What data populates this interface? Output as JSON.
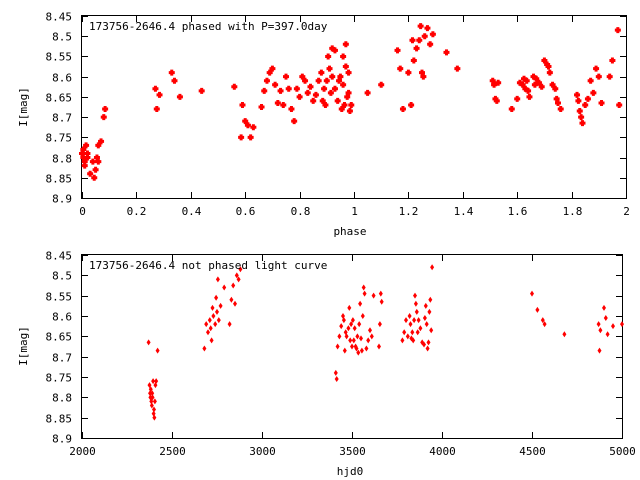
{
  "chart_data": [
    {
      "type": "scatter",
      "title": "173756-2646.4 phased with P=397.0day",
      "xlabel": "phase",
      "ylabel": "I[mag]",
      "xlim": [
        0,
        2
      ],
      "ylim": [
        8.9,
        8.45
      ],
      "y_inverted": true,
      "xticks": [
        0,
        0.2,
        0.4,
        0.6,
        0.8,
        1,
        1.2,
        1.4,
        1.6,
        1.8,
        2
      ],
      "xtick_labels": [
        "0",
        "0.2",
        "0.4",
        "0.6",
        "0.8",
        "1",
        "1.2",
        "1.4",
        "1.6",
        "1.8",
        "2"
      ],
      "yticks": [
        8.45,
        8.5,
        8.55,
        8.6,
        8.65,
        8.7,
        8.75,
        8.8,
        8.85,
        8.9
      ],
      "ytick_labels": [
        "8.45",
        "8.5",
        "8.55",
        "8.6",
        "8.65",
        "8.7",
        "8.75",
        "8.8",
        "8.85",
        "8.9"
      ],
      "marker_color": "#ff0000",
      "marker": "plus-square",
      "points": [
        [
          0.0,
          8.79
        ],
        [
          0.005,
          8.8
        ],
        [
          0.01,
          8.81
        ],
        [
          0.005,
          8.78
        ],
        [
          0.015,
          8.77
        ],
        [
          0.02,
          8.79
        ],
        [
          0.01,
          8.82
        ],
        [
          0.02,
          8.8
        ],
        [
          0.03,
          8.84
        ],
        [
          0.04,
          8.81
        ],
        [
          0.045,
          8.85
        ],
        [
          0.05,
          8.83
        ],
        [
          0.055,
          8.8
        ],
        [
          0.06,
          8.81
        ],
        [
          0.06,
          8.77
        ],
        [
          0.07,
          8.76
        ],
        [
          0.08,
          8.7
        ],
        [
          0.085,
          8.68
        ],
        [
          0.27,
          8.63
        ],
        [
          0.275,
          8.68
        ],
        [
          0.285,
          8.645
        ],
        [
          0.33,
          8.59
        ],
        [
          0.34,
          8.61
        ],
        [
          0.36,
          8.65
        ],
        [
          0.44,
          8.635
        ],
        [
          0.56,
          8.625
        ],
        [
          0.585,
          8.75
        ],
        [
          0.59,
          8.67
        ],
        [
          0.6,
          8.71
        ],
        [
          0.61,
          8.72
        ],
        [
          0.62,
          8.75
        ],
        [
          0.63,
          8.725
        ],
        [
          0.66,
          8.675
        ],
        [
          0.67,
          8.635
        ],
        [
          0.68,
          8.61
        ],
        [
          0.69,
          8.59
        ],
        [
          0.7,
          8.58
        ],
        [
          0.71,
          8.62
        ],
        [
          0.72,
          8.665
        ],
        [
          0.73,
          8.635
        ],
        [
          0.74,
          8.67
        ],
        [
          0.75,
          8.6
        ],
        [
          0.76,
          8.63
        ],
        [
          0.77,
          8.68
        ],
        [
          0.78,
          8.71
        ],
        [
          0.79,
          8.63
        ],
        [
          0.8,
          8.65
        ],
        [
          0.81,
          8.6
        ],
        [
          0.82,
          8.61
        ],
        [
          0.83,
          8.64
        ],
        [
          0.84,
          8.625
        ],
        [
          0.85,
          8.66
        ],
        [
          0.86,
          8.645
        ],
        [
          0.87,
          8.61
        ],
        [
          0.88,
          8.59
        ],
        [
          0.885,
          8.66
        ],
        [
          0.89,
          8.63
        ],
        [
          0.895,
          8.67
        ],
        [
          0.9,
          8.61
        ],
        [
          0.905,
          8.55
        ],
        [
          0.91,
          8.58
        ],
        [
          0.915,
          8.64
        ],
        [
          0.92,
          8.6
        ],
        [
          0.93,
          8.63
        ],
        [
          0.94,
          8.66
        ],
        [
          0.945,
          8.61
        ],
        [
          0.95,
          8.6
        ],
        [
          0.955,
          8.68
        ],
        [
          0.96,
          8.62
        ],
        [
          0.965,
          8.67
        ],
        [
          0.97,
          8.575
        ],
        [
          0.975,
          8.65
        ],
        [
          0.98,
          8.64
        ],
        [
          0.985,
          8.685
        ],
        [
          0.99,
          8.67
        ],
        [
          0.92,
          8.53
        ],
        [
          0.93,
          8.535
        ],
        [
          0.96,
          8.55
        ],
        [
          0.97,
          8.52
        ],
        [
          0.98,
          8.59
        ],
        [
          1.05,
          8.64
        ],
        [
          1.1,
          8.62
        ],
        [
          1.16,
          8.535
        ],
        [
          1.17,
          8.58
        ],
        [
          1.18,
          8.68
        ],
        [
          1.2,
          8.59
        ],
        [
          1.21,
          8.67
        ],
        [
          1.215,
          8.51
        ],
        [
          1.22,
          8.56
        ],
        [
          1.23,
          8.53
        ],
        [
          1.24,
          8.51
        ],
        [
          1.245,
          8.475
        ],
        [
          1.25,
          8.59
        ],
        [
          1.255,
          8.6
        ],
        [
          1.26,
          8.5
        ],
        [
          1.27,
          8.48
        ],
        [
          1.28,
          8.52
        ],
        [
          1.29,
          8.495
        ],
        [
          1.34,
          8.54
        ],
        [
          1.38,
          8.58
        ],
        [
          1.51,
          8.61
        ],
        [
          1.515,
          8.62
        ],
        [
          1.52,
          8.655
        ],
        [
          1.525,
          8.66
        ],
        [
          1.53,
          8.615
        ],
        [
          1.58,
          8.68
        ],
        [
          1.6,
          8.655
        ],
        [
          1.61,
          8.615
        ],
        [
          1.62,
          8.62
        ],
        [
          1.625,
          8.605
        ],
        [
          1.63,
          8.63
        ],
        [
          1.635,
          8.61
        ],
        [
          1.64,
          8.635
        ],
        [
          1.645,
          8.65
        ],
        [
          1.66,
          8.6
        ],
        [
          1.665,
          8.62
        ],
        [
          1.67,
          8.605
        ],
        [
          1.68,
          8.615
        ],
        [
          1.69,
          8.625
        ],
        [
          1.7,
          8.56
        ],
        [
          1.71,
          8.57
        ],
        [
          1.715,
          8.575
        ],
        [
          1.72,
          8.59
        ],
        [
          1.73,
          8.62
        ],
        [
          1.74,
          8.63
        ],
        [
          1.745,
          8.655
        ],
        [
          1.75,
          8.665
        ],
        [
          1.76,
          8.68
        ],
        [
          1.82,
          8.645
        ],
        [
          1.825,
          8.66
        ],
        [
          1.83,
          8.685
        ],
        [
          1.835,
          8.7
        ],
        [
          1.84,
          8.715
        ],
        [
          1.85,
          8.67
        ],
        [
          1.86,
          8.655
        ],
        [
          1.87,
          8.61
        ],
        [
          1.88,
          8.64
        ],
        [
          1.89,
          8.58
        ],
        [
          1.9,
          8.6
        ],
        [
          1.91,
          8.665
        ],
        [
          1.94,
          8.6
        ],
        [
          1.95,
          8.56
        ],
        [
          1.97,
          8.485
        ],
        [
          1.975,
          8.67
        ]
      ]
    },
    {
      "type": "scatter",
      "title": "173756-2646.4 not phased light curve",
      "xlabel": "hjd0",
      "ylabel": "I[mag]",
      "xlim": [
        2000,
        5000
      ],
      "ylim": [
        8.9,
        8.45
      ],
      "y_inverted": true,
      "xticks": [
        2000,
        2500,
        3000,
        3500,
        4000,
        4500,
        5000
      ],
      "xtick_labels": [
        "2000",
        "2500",
        "3000",
        "3500",
        "4000",
        "4500",
        "5000"
      ],
      "yticks": [
        8.45,
        8.5,
        8.55,
        8.6,
        8.65,
        8.7,
        8.75,
        8.8,
        8.85,
        8.9
      ],
      "ytick_labels": [
        "8.45",
        "8.5",
        "8.55",
        "8.6",
        "8.65",
        "8.7",
        "8.75",
        "8.8",
        "8.85",
        "8.9"
      ],
      "marker_color": "#ff0000",
      "marker": "diamond",
      "points": [
        [
          2370,
          8.665
        ],
        [
          2375,
          8.77
        ],
        [
          2378,
          8.79
        ],
        [
          2380,
          8.8
        ],
        [
          2382,
          8.78
        ],
        [
          2385,
          8.81
        ],
        [
          2388,
          8.82
        ],
        [
          2390,
          8.79
        ],
        [
          2392,
          8.8
        ],
        [
          2395,
          8.76
        ],
        [
          2398,
          8.84
        ],
        [
          2400,
          8.83
        ],
        [
          2402,
          8.85
        ],
        [
          2405,
          8.81
        ],
        [
          2408,
          8.77
        ],
        [
          2412,
          8.76
        ],
        [
          2420,
          8.685
        ],
        [
          2680,
          8.68
        ],
        [
          2690,
          8.62
        ],
        [
          2700,
          8.64
        ],
        [
          2710,
          8.61
        ],
        [
          2715,
          8.63
        ],
        [
          2720,
          8.66
        ],
        [
          2725,
          8.58
        ],
        [
          2730,
          8.6
        ],
        [
          2740,
          8.62
        ],
        [
          2745,
          8.555
        ],
        [
          2750,
          8.59
        ],
        [
          2755,
          8.51
        ],
        [
          2760,
          8.61
        ],
        [
          2770,
          8.575
        ],
        [
          2790,
          8.53
        ],
        [
          2820,
          8.62
        ],
        [
          2830,
          8.56
        ],
        [
          2840,
          8.525
        ],
        [
          2850,
          8.57
        ],
        [
          2860,
          8.5
        ],
        [
          2870,
          8.51
        ],
        [
          2880,
          8.485
        ],
        [
          3410,
          8.74
        ],
        [
          3415,
          8.755
        ],
        [
          3420,
          8.675
        ],
        [
          3430,
          8.65
        ],
        [
          3440,
          8.625
        ],
        [
          3450,
          8.6
        ],
        [
          3455,
          8.61
        ],
        [
          3460,
          8.685
        ],
        [
          3465,
          8.64
        ],
        [
          3470,
          8.65
        ],
        [
          3480,
          8.63
        ],
        [
          3485,
          8.58
        ],
        [
          3490,
          8.66
        ],
        [
          3495,
          8.62
        ],
        [
          3500,
          8.675
        ],
        [
          3505,
          8.61
        ],
        [
          3510,
          8.66
        ],
        [
          3515,
          8.63
        ],
        [
          3520,
          8.675
        ],
        [
          3525,
          8.68
        ],
        [
          3530,
          8.65
        ],
        [
          3535,
          8.69
        ],
        [
          3540,
          8.62
        ],
        [
          3545,
          8.57
        ],
        [
          3550,
          8.655
        ],
        [
          3555,
          8.685
        ],
        [
          3560,
          8.6
        ],
        [
          3565,
          8.53
        ],
        [
          3570,
          8.545
        ],
        [
          3580,
          8.68
        ],
        [
          3590,
          8.66
        ],
        [
          3600,
          8.635
        ],
        [
          3610,
          8.65
        ],
        [
          3620,
          8.55
        ],
        [
          3650,
          8.675
        ],
        [
          3655,
          8.62
        ],
        [
          3660,
          8.545
        ],
        [
          3665,
          8.565
        ],
        [
          3780,
          8.66
        ],
        [
          3790,
          8.64
        ],
        [
          3800,
          8.61
        ],
        [
          3810,
          8.65
        ],
        [
          3820,
          8.6
        ],
        [
          3825,
          8.62
        ],
        [
          3830,
          8.655
        ],
        [
          3835,
          8.64
        ],
        [
          3840,
          8.66
        ],
        [
          3845,
          8.61
        ],
        [
          3850,
          8.55
        ],
        [
          3855,
          8.57
        ],
        [
          3860,
          8.59
        ],
        [
          3865,
          8.64
        ],
        [
          3870,
          8.61
        ],
        [
          3880,
          8.63
        ],
        [
          3890,
          8.665
        ],
        [
          3900,
          8.67
        ],
        [
          3905,
          8.605
        ],
        [
          3910,
          8.575
        ],
        [
          3915,
          8.62
        ],
        [
          3920,
          8.68
        ],
        [
          3925,
          8.665
        ],
        [
          3930,
          8.59
        ],
        [
          3935,
          8.56
        ],
        [
          3940,
          8.635
        ],
        [
          3945,
          8.48
        ],
        [
          4500,
          8.545
        ],
        [
          4530,
          8.585
        ],
        [
          4560,
          8.61
        ],
        [
          4570,
          8.62
        ],
        [
          4680,
          8.645
        ],
        [
          4870,
          8.62
        ],
        [
          4875,
          8.685
        ],
        [
          4880,
          8.635
        ],
        [
          4900,
          8.58
        ],
        [
          4910,
          8.605
        ],
        [
          4920,
          8.645
        ],
        [
          4950,
          8.625
        ],
        [
          5000,
          8.62
        ]
      ]
    }
  ]
}
